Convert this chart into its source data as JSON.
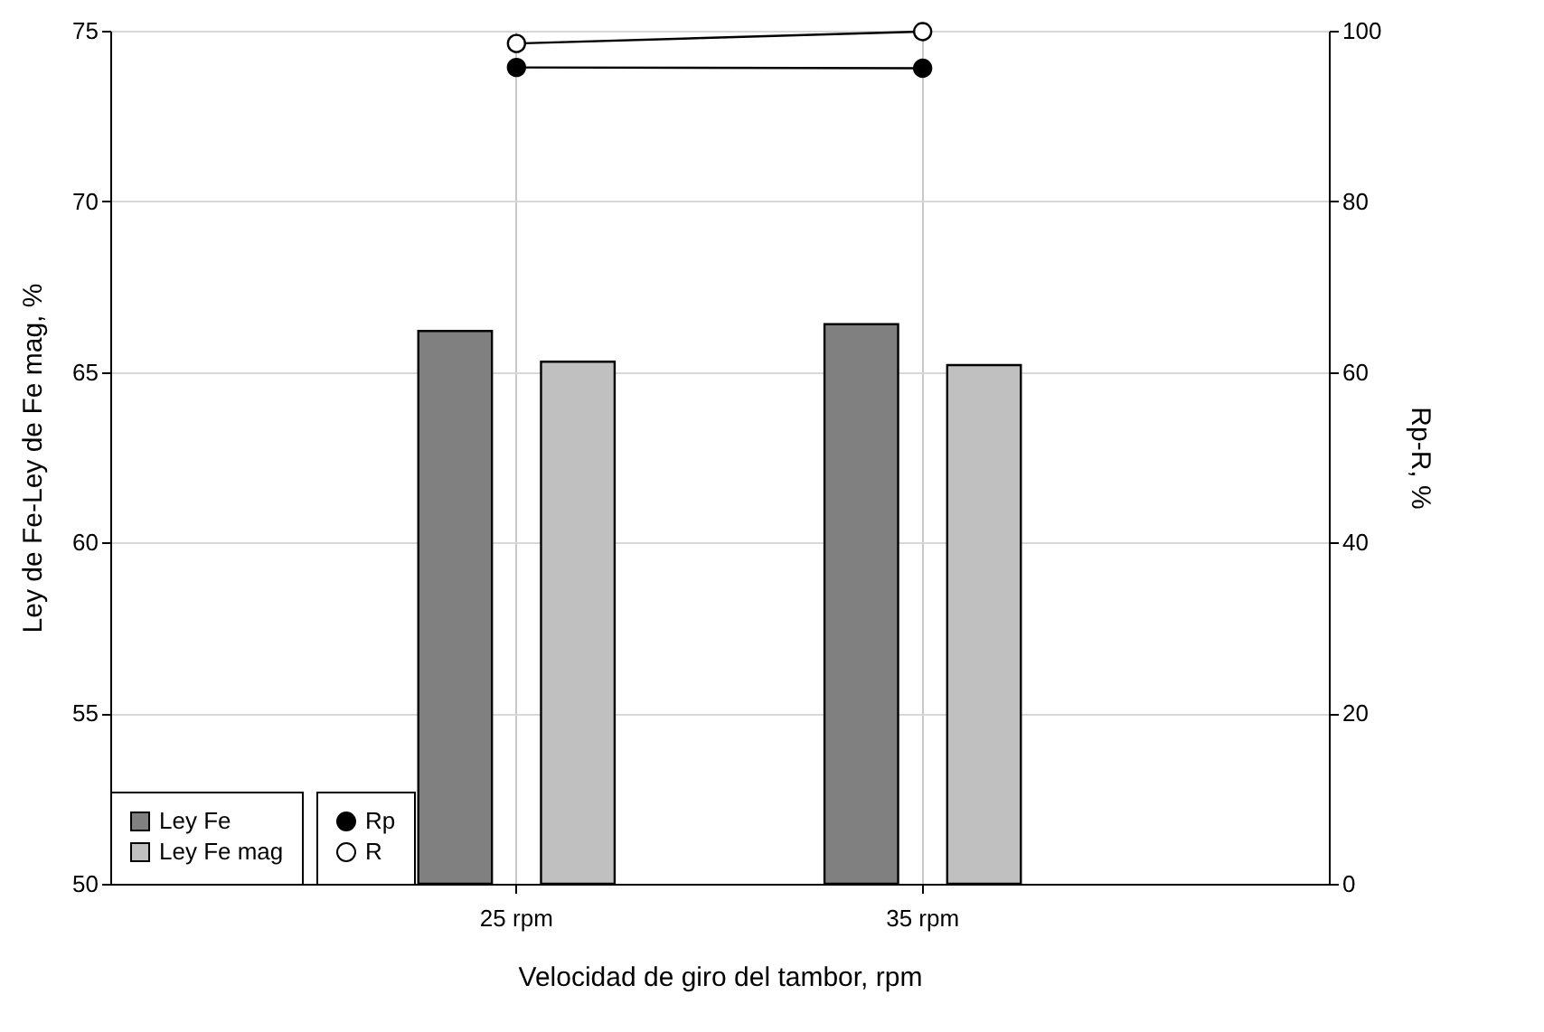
{
  "chart_data": {
    "type": "bar",
    "xlabel": "Velocidad de giro del tambor, rpm",
    "ylabel": "Ley de Fe-Ley de Fe mag, %",
    "y2label": "Rp-R, %",
    "categories": [
      "25 rpm",
      "35 rpm"
    ],
    "series": [
      {
        "name": "Ley Fe",
        "color": "#808080",
        "values": [
          66.2,
          66.4
        ]
      },
      {
        "name": "Ley Fe mag",
        "color": "#c0c0c0",
        "values": [
          65.3,
          65.2
        ]
      },
      {
        "name": "Rp",
        "type": "line",
        "axis": "y2",
        "color": "#000000",
        "marker": "circle",
        "values": [
          95.7,
          95.6
        ]
      },
      {
        "name": "R",
        "type": "line",
        "axis": "y2",
        "color": "#ffffff",
        "marker": "circle",
        "values": [
          98.5,
          99.9
        ]
      }
    ],
    "ylim": [
      50,
      75
    ],
    "yticks": [
      50,
      55,
      60,
      65,
      70,
      75
    ],
    "y2lim": [
      0,
      100
    ],
    "y2ticks": [
      0,
      20,
      40,
      60,
      80,
      100
    ],
    "grid": true,
    "legend": "bottom left"
  }
}
